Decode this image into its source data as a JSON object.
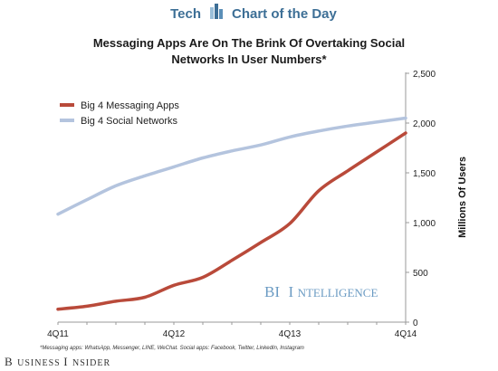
{
  "header": {
    "brand_left": "Tech",
    "brand_right": "Chart of the Day"
  },
  "watermark": {
    "text_big_1": "BI",
    "text_big_2": "I",
    "text_small": "NTELLIGENCE"
  },
  "footnote": "*Messaging apps: WhatsApp, Messenger, LINE, WeChat. Social apps: Facebook, Twitter, LinkedIn, Instagram",
  "publisher": {
    "big_b": "B",
    "rest_1": "USINESS ",
    "big_i": "I",
    "rest_2": "NSIDER"
  },
  "colors": {
    "messaging": "#b94a3a",
    "social": "#b4c4de",
    "brand": "#3d6f96"
  },
  "chart_data": {
    "type": "line",
    "title_line1": "Messaging Apps Are On The Brink Of Overtaking Social",
    "title_line2": "Networks In User Numbers*",
    "xlabel": "",
    "ylabel": "Millions Of Users",
    "x": [
      "4Q11",
      "1Q12",
      "2Q12",
      "3Q12",
      "4Q12",
      "1Q13",
      "2Q13",
      "3Q13",
      "4Q13",
      "1Q14",
      "2Q14",
      "3Q14",
      "4Q14"
    ],
    "x_tick_labels": [
      "4Q11",
      "4Q12",
      "4Q13",
      "4Q14"
    ],
    "ylim": [
      0,
      2500
    ],
    "y_ticks": [
      0,
      500,
      1000,
      1500,
      2000,
      2500
    ],
    "y_tick_labels": [
      "0",
      "500",
      "1,000",
      "1,500",
      "2,000",
      "2,500"
    ],
    "y_axis_side": "right",
    "grid": false,
    "legend_position": "top-left",
    "series": [
      {
        "name": "Big 4 Messaging Apps",
        "values": [
          130,
          160,
          210,
          250,
          370,
          450,
          620,
          800,
          990,
          1320,
          1520,
          1710,
          1900
        ]
      },
      {
        "name": "Big 4 Social Networks",
        "values": [
          1085,
          1230,
          1370,
          1470,
          1560,
          1650,
          1720,
          1780,
          1860,
          1920,
          1970,
          2010,
          2050
        ]
      }
    ]
  }
}
